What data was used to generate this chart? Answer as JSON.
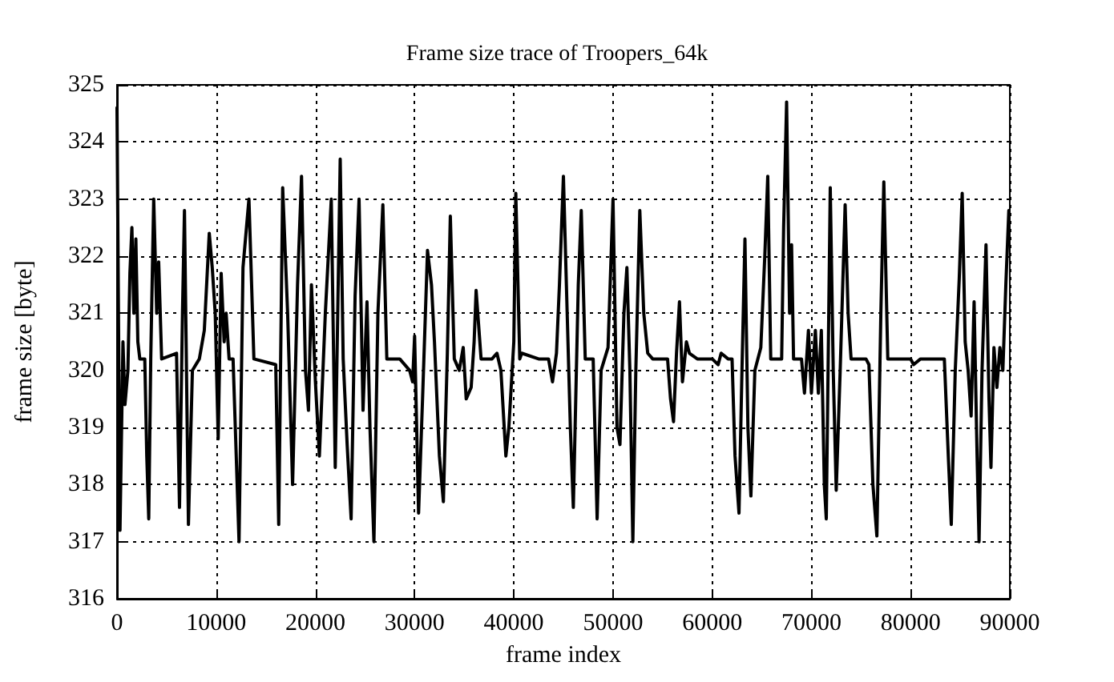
{
  "chart_data": {
    "type": "line",
    "title": "Frame size trace of Troopers_64k",
    "xlabel": "frame index",
    "ylabel": "frame size [byte]",
    "x": [
      0,
      300,
      600,
      800,
      1100,
      1300,
      1500,
      1700,
      1900,
      2100,
      2300,
      2800,
      3000,
      3200,
      3400,
      3700,
      4000,
      4200,
      4500,
      6000,
      6300,
      6600,
      6800,
      7200,
      7600,
      8300,
      8800,
      9300,
      9600,
      9900,
      10200,
      10500,
      10800,
      11000,
      11300,
      11700,
      12300,
      12700,
      13300,
      13800,
      16000,
      16300,
      16700,
      17200,
      17700,
      18200,
      18600,
      19000,
      19300,
      19600,
      20000,
      20400,
      21000,
      21600,
      22000,
      22500,
      22800,
      23200,
      23600,
      24000,
      24400,
      24800,
      25200,
      25500,
      25900,
      26300,
      26800,
      27200,
      28500,
      29500,
      29800,
      30000,
      30400,
      30800,
      31300,
      31700,
      32000,
      32500,
      32900,
      33300,
      33600,
      34000,
      34500,
      34900,
      35200,
      35700,
      36000,
      36200,
      36700,
      37800,
      38300,
      38700,
      39200,
      39500,
      40000,
      40200,
      40600,
      40800,
      42500,
      43500,
      43900,
      44300,
      44600,
      45000,
      45300,
      45700,
      46000,
      46500,
      46800,
      47200,
      48000,
      48400,
      48800,
      49500,
      50000,
      50400,
      50700,
      51100,
      51400,
      51700,
      52000,
      52300,
      52700,
      53100,
      53500,
      54000,
      55500,
      55800,
      56100,
      56400,
      56700,
      57000,
      57400,
      57700,
      58500,
      60000,
      60600,
      60900,
      61600,
      62000,
      62300,
      62700,
      63000,
      63300,
      63600,
      63900,
      64300,
      64900,
      65300,
      65600,
      65900,
      67000,
      67200,
      67500,
      67800,
      68000,
      68200,
      69000,
      69300,
      69700,
      70000,
      70400,
      70700,
      71000,
      71300,
      71500,
      71900,
      72200,
      72500,
      72900,
      73400,
      73700,
      74000,
      75500,
      75800,
      76200,
      76600,
      77000,
      77300,
      77700,
      80000,
      80300,
      81000,
      83400,
      83800,
      84100,
      84500,
      84900,
      85200,
      85500,
      85800,
      86100,
      86400,
      86700,
      86900,
      87200,
      87600,
      87900,
      88100,
      88400,
      88700,
      89000,
      89300,
      89600,
      89900
    ],
    "series": [
      {
        "color": "#000000",
        "values": [
          324.6,
          317.2,
          320.5,
          319.4,
          320.0,
          321.7,
          322.5,
          321.0,
          322.3,
          320.5,
          320.2,
          320.2,
          318.5,
          317.4,
          320.2,
          323.0,
          321.0,
          321.9,
          320.2,
          320.3,
          317.6,
          321.0,
          322.8,
          317.3,
          320.0,
          320.2,
          320.7,
          322.4,
          321.8,
          321.0,
          318.8,
          321.7,
          320.5,
          321.0,
          320.2,
          320.2,
          317.0,
          321.8,
          323.0,
          320.2,
          320.1,
          317.3,
          323.2,
          321.0,
          318.0,
          321.5,
          323.4,
          320.0,
          319.3,
          321.5,
          319.8,
          318.5,
          321.0,
          323.0,
          318.3,
          323.7,
          320.2,
          318.7,
          317.4,
          321.3,
          323.0,
          319.3,
          321.2,
          319.0,
          317.0,
          321.0,
          322.9,
          320.2,
          320.2,
          320.0,
          319.8,
          320.6,
          317.5,
          319.5,
          322.1,
          321.5,
          320.5,
          318.5,
          317.7,
          320.3,
          322.7,
          320.2,
          320.0,
          320.4,
          319.5,
          319.7,
          320.5,
          321.4,
          320.2,
          320.2,
          320.3,
          320.0,
          318.5,
          319.0,
          320.5,
          323.1,
          320.2,
          320.3,
          320.2,
          320.2,
          319.8,
          320.3,
          321.5,
          323.4,
          321.5,
          319.0,
          317.6,
          321.5,
          322.8,
          320.2,
          320.2,
          317.4,
          320.0,
          320.4,
          323.0,
          319.0,
          318.7,
          321.0,
          321.8,
          320.0,
          317.0,
          320.0,
          322.8,
          321.0,
          320.3,
          320.2,
          320.2,
          319.5,
          319.1,
          320.3,
          321.2,
          319.8,
          320.5,
          320.3,
          320.2,
          320.2,
          320.1,
          320.3,
          320.2,
          320.2,
          318.5,
          317.5,
          320.0,
          322.3,
          319.0,
          317.8,
          320.0,
          320.4,
          322.0,
          323.4,
          320.2,
          320.2,
          322.5,
          324.7,
          321.0,
          322.2,
          320.2,
          320.2,
          319.6,
          320.7,
          319.6,
          320.7,
          319.6,
          320.7,
          318.0,
          317.4,
          323.2,
          320.0,
          317.9,
          320.0,
          322.9,
          321.0,
          320.2,
          320.2,
          320.1,
          318.0,
          317.1,
          321.0,
          323.3,
          320.2,
          320.2,
          320.1,
          320.2,
          320.2,
          318.5,
          317.3,
          320.0,
          321.6,
          323.1,
          320.5,
          320.0,
          319.2,
          321.2,
          318.5,
          317.0,
          320.0,
          322.2,
          319.5,
          318.3,
          320.4,
          319.7,
          320.4,
          320.0,
          321.5,
          322.8
        ]
      }
    ],
    "xlim": [
      0,
      90000
    ],
    "xticks": [
      0,
      10000,
      20000,
      30000,
      40000,
      50000,
      60000,
      70000,
      80000,
      90000
    ],
    "ylim": [
      316,
      325
    ],
    "yticks": [
      316,
      317,
      318,
      319,
      320,
      321,
      322,
      323,
      324,
      325
    ],
    "grid": true,
    "legend": false,
    "marker": "none",
    "line_style": "solid"
  }
}
